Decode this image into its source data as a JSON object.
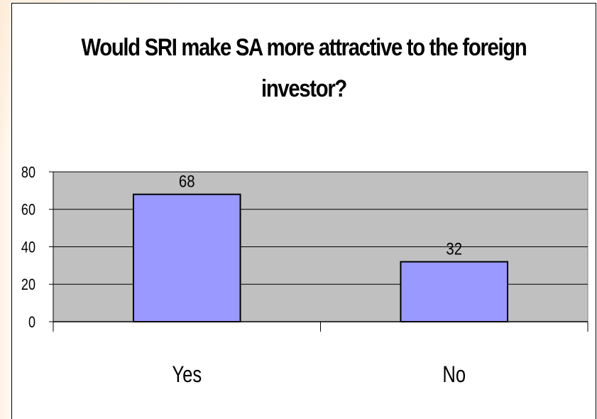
{
  "chart_data": {
    "type": "bar",
    "title": "Would SRI make SA more attractive to the foreign investor?",
    "categories": [
      "Yes",
      "No"
    ],
    "values": [
      68,
      32
    ],
    "data_labels": [
      "68",
      "32"
    ],
    "xlabel": "",
    "ylabel": "",
    "ylim": [
      0,
      80
    ],
    "yticks": [
      "0",
      "20",
      "40",
      "60",
      "80"
    ],
    "grid": true,
    "legend": "none",
    "bar_color": "#9999ff",
    "plot_background": "#c0c0c0"
  }
}
